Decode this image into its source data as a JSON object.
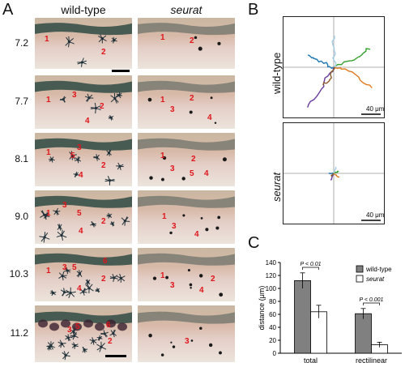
{
  "panel_a": {
    "letter": "A",
    "col_wild": "wild-type",
    "col_seurat": "seurat",
    "times": [
      "7.2",
      "7.7",
      "8.1",
      "9.0",
      "10.3",
      "11.2"
    ],
    "wild_labels": [
      [
        "1",
        "2"
      ],
      [
        "1",
        "3",
        "2",
        "4"
      ],
      [
        "1",
        "3",
        "5",
        "2",
        "4"
      ],
      [
        "3",
        "1",
        "5",
        "2",
        "4"
      ],
      [
        "3",
        "1",
        "5",
        "6",
        "2",
        "4"
      ],
      [
        "3",
        "5",
        "6",
        "2"
      ]
    ],
    "seurat_labels": [
      [
        "1",
        "2"
      ],
      [
        "1",
        "2",
        "3",
        "4"
      ],
      [
        "1",
        "2",
        "3",
        "5",
        "4"
      ],
      [
        "1",
        "3",
        "4"
      ],
      [
        "1",
        "3",
        "2",
        "4"
      ],
      [
        "3"
      ]
    ]
  },
  "panel_b": {
    "letter": "B",
    "label_wild": "wild-type",
    "label_seurat": "seurat",
    "scale_wild": "40 μm",
    "scale_seurat": "40 μm",
    "track_colors": [
      "#6a3d9a",
      "#e07b1f",
      "#1f78b4",
      "#33a02c",
      "#a6cee3",
      "#8b5a2b"
    ]
  },
  "panel_c": {
    "letter": "C"
  },
  "chart_data": {
    "type": "bar",
    "categories": [
      "total",
      "rectilinear"
    ],
    "series": [
      {
        "name": "wild-type",
        "values": [
          112,
          61
        ],
        "errors": [
          12,
          8
        ],
        "color": "#808080"
      },
      {
        "name": "seurat",
        "values": [
          64,
          13
        ],
        "errors": [
          10,
          4
        ],
        "color": "#ffffff"
      }
    ],
    "ylabel": "distance (μm)",
    "ylim": [
      0,
      140
    ],
    "yticks": [
      0,
      20,
      40,
      60,
      80,
      100,
      120,
      140
    ],
    "annotations": [
      "P < 0.01",
      "P < 0.001"
    ],
    "legend_placement": "top-right"
  }
}
